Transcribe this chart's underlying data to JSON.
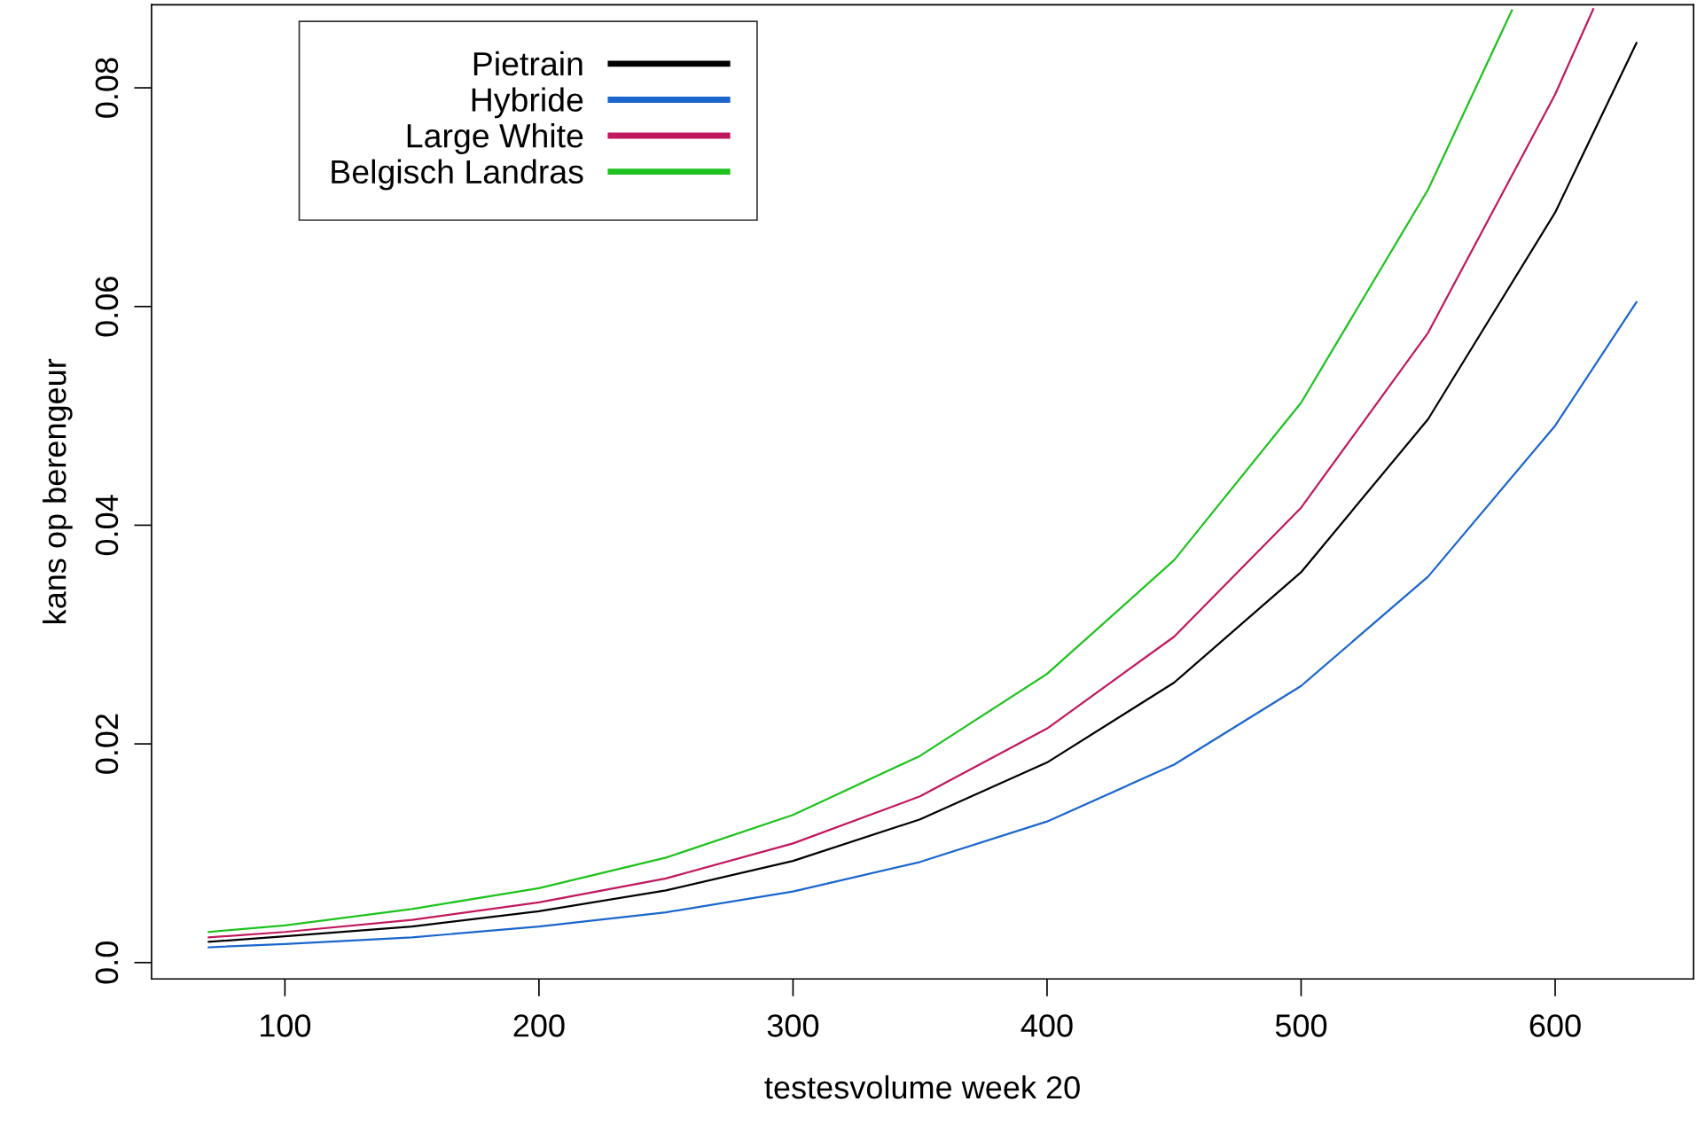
{
  "chart_data": {
    "type": "line",
    "xlabel": "testesvolume week 20",
    "ylabel": "kans op berengeur",
    "x": [
      70,
      100,
      150,
      200,
      250,
      300,
      350,
      400,
      450,
      500,
      550,
      600,
      632
    ],
    "series": [
      {
        "name": "Pietrain",
        "color": "#000000",
        "values": [
          0.0019,
          0.0024,
          0.0033,
          0.0047,
          0.0066,
          0.0093,
          0.0131,
          0.0183,
          0.0256,
          0.0357,
          0.0497,
          0.0686,
          0.0841
        ]
      },
      {
        "name": "Hybride",
        "color": "#1a66cc",
        "values": [
          0.0014,
          0.0017,
          0.0023,
          0.0033,
          0.0046,
          0.0065,
          0.0092,
          0.0129,
          0.0181,
          0.0253,
          0.0353,
          0.0491,
          0.0604
        ]
      },
      {
        "name": "Large White",
        "color": "#c0185e",
        "x": [
          70,
          100,
          150,
          200,
          250,
          300,
          350,
          400,
          450,
          500,
          550,
          600,
          615
        ],
        "values": [
          0.0023,
          0.0028,
          0.0039,
          0.0055,
          0.0077,
          0.0109,
          0.0152,
          0.0214,
          0.0298,
          0.0416,
          0.0576,
          0.0794,
          0.0872
        ]
      },
      {
        "name": "Belgisch Landras",
        "color": "#1ec21e",
        "x": [
          70,
          100,
          150,
          200,
          250,
          300,
          350,
          400,
          450,
          500,
          550,
          583
        ],
        "values": [
          0.0028,
          0.0034,
          0.0049,
          0.0068,
          0.0096,
          0.0135,
          0.0189,
          0.0264,
          0.0368,
          0.0512,
          0.0707,
          0.0871
        ]
      }
    ],
    "xlim": [
      47.5,
      654.5
    ],
    "ylim": [
      -0.0015,
      0.0876
    ],
    "xticks": [
      100,
      200,
      300,
      400,
      500,
      600
    ],
    "yticks": [
      {
        "value": 0,
        "label": "0.0"
      },
      0.02,
      0.04,
      0.06,
      0.08
    ],
    "grid": false,
    "legend": "top left",
    "marker": "none",
    "line_style": "solid"
  }
}
